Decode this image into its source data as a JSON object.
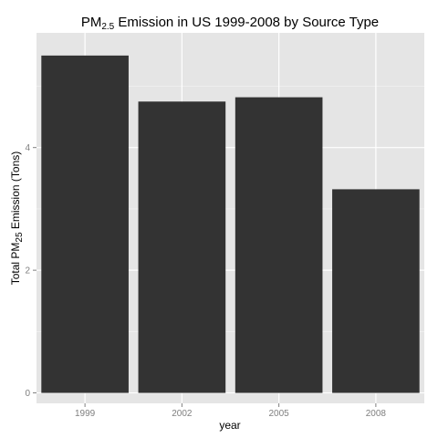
{
  "chart_data": {
    "type": "bar",
    "title": {
      "prefix": "PM",
      "subscript": "2.5",
      "suffix": " Emission in US 1999-2008 by Source Type"
    },
    "xlabel": "year",
    "ylabel": {
      "prefix": "Total PM",
      "subscript": "25",
      "suffix": " Emission (Tons)"
    },
    "categories": [
      "1999",
      "2002",
      "2005",
      "2008"
    ],
    "values": [
      5.5,
      4.75,
      4.82,
      3.32
    ],
    "ylim": [
      -0.17,
      5.87
    ],
    "y_ticks": [
      "0",
      "2",
      "4"
    ],
    "grid": true,
    "panel_color": "#e5e5e5",
    "grid_color": "#ffffff",
    "bar_color": "#333333"
  }
}
